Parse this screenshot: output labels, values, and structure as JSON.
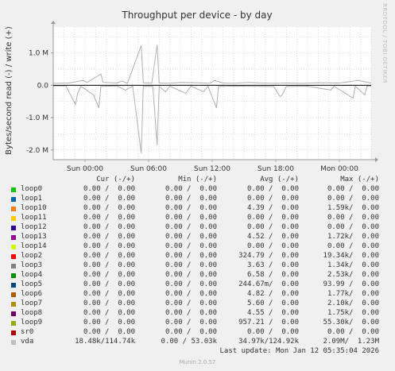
{
  "chart_data": {
    "type": "line",
    "title": "Throughput per device - by day",
    "ylabel": "Bytes/second read (-) / write (+)",
    "ylim": [
      -2300000,
      1800000
    ],
    "yticks": [
      {
        "value": 1000000,
        "label": "1.0 M"
      },
      {
        "value": 0,
        "label": "0.0"
      },
      {
        "value": -1000000,
        "label": "-1.0 M"
      },
      {
        "value": -2000000,
        "label": "-2.0 M"
      }
    ],
    "xlim": [
      0,
      30
    ],
    "xticks": [
      {
        "value": 3,
        "label": "Sun 00:00"
      },
      {
        "value": 9,
        "label": "Sun 06:00"
      },
      {
        "value": 15,
        "label": "Sun 12:00"
      },
      {
        "value": 21,
        "label": "Sun 18:00"
      },
      {
        "value": 27,
        "label": "Mon 00:00"
      }
    ],
    "x_unit": "hours since Sat 21:00",
    "grid": true,
    "series": [
      {
        "name": "vda",
        "color": "#b0b0b0",
        "write": [
          [
            0,
            60000
          ],
          [
            1.5,
            70000
          ],
          [
            2.8,
            150000
          ],
          [
            3.2,
            90000
          ],
          [
            4.5,
            350000
          ],
          [
            4.7,
            90000
          ],
          [
            6,
            70000
          ],
          [
            6.5,
            130000
          ],
          [
            7,
            60000
          ],
          [
            8.3,
            1230000
          ],
          [
            8.5,
            80000
          ],
          [
            9.3,
            60000
          ],
          [
            9.8,
            1250000
          ],
          [
            10,
            70000
          ],
          [
            11,
            60000
          ],
          [
            12,
            90000
          ],
          [
            13.5,
            80000
          ],
          [
            14.8,
            60000
          ],
          [
            15.2,
            150000
          ],
          [
            16,
            70000
          ],
          [
            17,
            60000
          ],
          [
            18.5,
            90000
          ],
          [
            19.5,
            70000
          ],
          [
            21,
            60000
          ],
          [
            22,
            70000
          ],
          [
            23.5,
            60000
          ],
          [
            25,
            80000
          ],
          [
            27,
            70000
          ],
          [
            28.8,
            150000
          ],
          [
            30,
            70000
          ]
        ],
        "read": [
          [
            0,
            -20000
          ],
          [
            1.2,
            -20000
          ],
          [
            2.1,
            -600000
          ],
          [
            2.3,
            -250000
          ],
          [
            2.6,
            -30000
          ],
          [
            3.8,
            -300000
          ],
          [
            4.3,
            -700000
          ],
          [
            4.5,
            -40000
          ],
          [
            6,
            -20000
          ],
          [
            6.8,
            -150000
          ],
          [
            7.5,
            -30000
          ],
          [
            8.3,
            -2100000
          ],
          [
            8.5,
            -30000
          ],
          [
            9.4,
            -40000
          ],
          [
            9.8,
            -1850000
          ],
          [
            10,
            -40000
          ],
          [
            10.6,
            -200000
          ],
          [
            11,
            -30000
          ],
          [
            12.5,
            -250000
          ],
          [
            13,
            -30000
          ],
          [
            14.2,
            -200000
          ],
          [
            14.6,
            -30000
          ],
          [
            15.4,
            -700000
          ],
          [
            15.6,
            -40000
          ],
          [
            17,
            -30000
          ],
          [
            20.8,
            -40000
          ],
          [
            21.4,
            -350000
          ],
          [
            21.6,
            -300000
          ],
          [
            22,
            -40000
          ],
          [
            24,
            -30000
          ],
          [
            26.2,
            -150000
          ],
          [
            26.5,
            -30000
          ],
          [
            28.3,
            -400000
          ],
          [
            28.5,
            -30000
          ],
          [
            29.4,
            -300000
          ],
          [
            29.6,
            -30000
          ],
          [
            30,
            -20000
          ]
        ]
      }
    ]
  },
  "legend": {
    "headers": {
      "cur": "Cur (-/+)",
      "min": "Min (-/+)",
      "avg": "Avg (-/+)",
      "max": "Max (-/+)"
    },
    "rows": [
      {
        "name": "loop0",
        "color": "#00cc00",
        "cur": "0.00 /  0.00",
        "min": "0.00 /  0.00",
        "avg": "0.00 /  0.00",
        "max": "0.00 /  0.00"
      },
      {
        "name": "loop1",
        "color": "#0066b3",
        "cur": "0.00 /  0.00",
        "min": "0.00 /  0.00",
        "avg": "0.00 /  0.00",
        "max": "0.00 /  0.00"
      },
      {
        "name": "loop10",
        "color": "#ff8000",
        "cur": "0.00 /  0.00",
        "min": "0.00 /  0.00",
        "avg": "4.39 /  0.00",
        "max": "1.59k/  0.00"
      },
      {
        "name": "loop11",
        "color": "#ffcc00",
        "cur": "0.00 /  0.00",
        "min": "0.00 /  0.00",
        "avg": "0.00 /  0.00",
        "max": "0.00 /  0.00"
      },
      {
        "name": "loop12",
        "color": "#330099",
        "cur": "0.00 /  0.00",
        "min": "0.00 /  0.00",
        "avg": "0.00 /  0.00",
        "max": "0.00 /  0.00"
      },
      {
        "name": "loop13",
        "color": "#990099",
        "cur": "0.00 /  0.00",
        "min": "0.00 /  0.00",
        "avg": "4.52 /  0.00",
        "max": "1.72k/  0.00"
      },
      {
        "name": "loop14",
        "color": "#ccff00",
        "cur": "0.00 /  0.00",
        "min": "0.00 /  0.00",
        "avg": "0.00 /  0.00",
        "max": "0.00 /  0.00"
      },
      {
        "name": "loop2",
        "color": "#ff0000",
        "cur": "0.00 /  0.00",
        "min": "0.00 /  0.00",
        "avg": "324.79 /  0.00",
        "max": "19.34k/  0.00"
      },
      {
        "name": "loop3",
        "color": "#808080",
        "cur": "0.00 /  0.00",
        "min": "0.00 /  0.00",
        "avg": "3.63 /  0.00",
        "max": "1.34k/  0.00"
      },
      {
        "name": "loop4",
        "color": "#008f00",
        "cur": "0.00 /  0.00",
        "min": "0.00 /  0.00",
        "avg": "6.58 /  0.00",
        "max": "2.53k/  0.00"
      },
      {
        "name": "loop5",
        "color": "#00487d",
        "cur": "0.00 /  0.00",
        "min": "0.00 /  0.00",
        "avg": "244.67m/  0.00",
        "max": "93.99 /  0.00"
      },
      {
        "name": "loop6",
        "color": "#b35a00",
        "cur": "0.00 /  0.00",
        "min": "0.00 /  0.00",
        "avg": "4.82 /  0.00",
        "max": "1.77k/  0.00"
      },
      {
        "name": "loop7",
        "color": "#b38f00",
        "cur": "0.00 /  0.00",
        "min": "0.00 /  0.00",
        "avg": "5.60 /  0.00",
        "max": "2.10k/  0.00"
      },
      {
        "name": "loop8",
        "color": "#6b006b",
        "cur": "0.00 /  0.00",
        "min": "0.00 /  0.00",
        "avg": "4.55 /  0.00",
        "max": "1.75k/  0.00"
      },
      {
        "name": "loop9",
        "color": "#8fb300",
        "cur": "0.00 /  0.00",
        "min": "0.00 /  0.00",
        "avg": "957.21 /  0.00",
        "max": "55.30k/  0.00"
      },
      {
        "name": "sr0",
        "color": "#b30000",
        "cur": "0.00 /  0.00",
        "min": "0.00 /  0.00",
        "avg": "0.00 /  0.00",
        "max": "0.00 /  0.00"
      },
      {
        "name": "vda",
        "color": "#bebebe",
        "cur": "18.48k/114.74k",
        "min": "0.00 / 53.03k",
        "avg": "34.97k/124.92k",
        "max": "2.09M/  1.23M"
      }
    ]
  },
  "last_update": "Last update: Mon Jan 12 05:35:04 2026",
  "footer": "Munin 2.0.57",
  "side_label": "RRDTOOL / TOBI OETIKER",
  "colors": {
    "plot_bg": "#ffffff",
    "grid": "#e6d8d8",
    "axis": "#333333",
    "zero_line": "#000000"
  }
}
